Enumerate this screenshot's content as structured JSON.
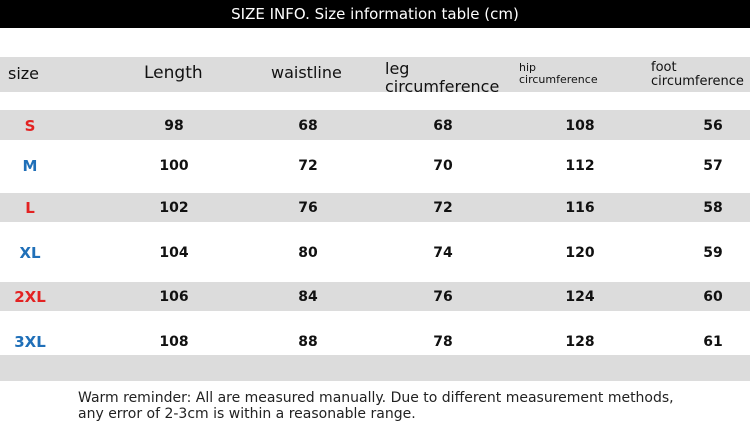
{
  "header": {
    "title": "SIZE INFO. Size information table (cm)"
  },
  "table": {
    "columns": [
      "size",
      "Length",
      "waistline",
      "leg circumference",
      "hip circumference",
      "foot circumference"
    ],
    "rows": [
      {
        "size": "S",
        "color": "#e32222",
        "values": [
          98,
          68,
          68,
          108,
          56
        ]
      },
      {
        "size": "M",
        "color": "#1f6fb8",
        "values": [
          100,
          72,
          70,
          112,
          57
        ]
      },
      {
        "size": "L",
        "color": "#e32222",
        "values": [
          102,
          76,
          72,
          116,
          58
        ]
      },
      {
        "size": "XL",
        "color": "#1f6fb8",
        "values": [
          104,
          80,
          74,
          120,
          59
        ]
      },
      {
        "size": "2XL",
        "color": "#e32222",
        "values": [
          106,
          84,
          76,
          124,
          60
        ]
      },
      {
        "size": "3XL",
        "color": "#1f6fb8",
        "values": [
          108,
          88,
          78,
          128,
          61
        ]
      }
    ]
  },
  "footer": "Warm reminder: All are measured manually. Due to different measurement methods, any error of 2-3cm is within a reasonable range."
}
